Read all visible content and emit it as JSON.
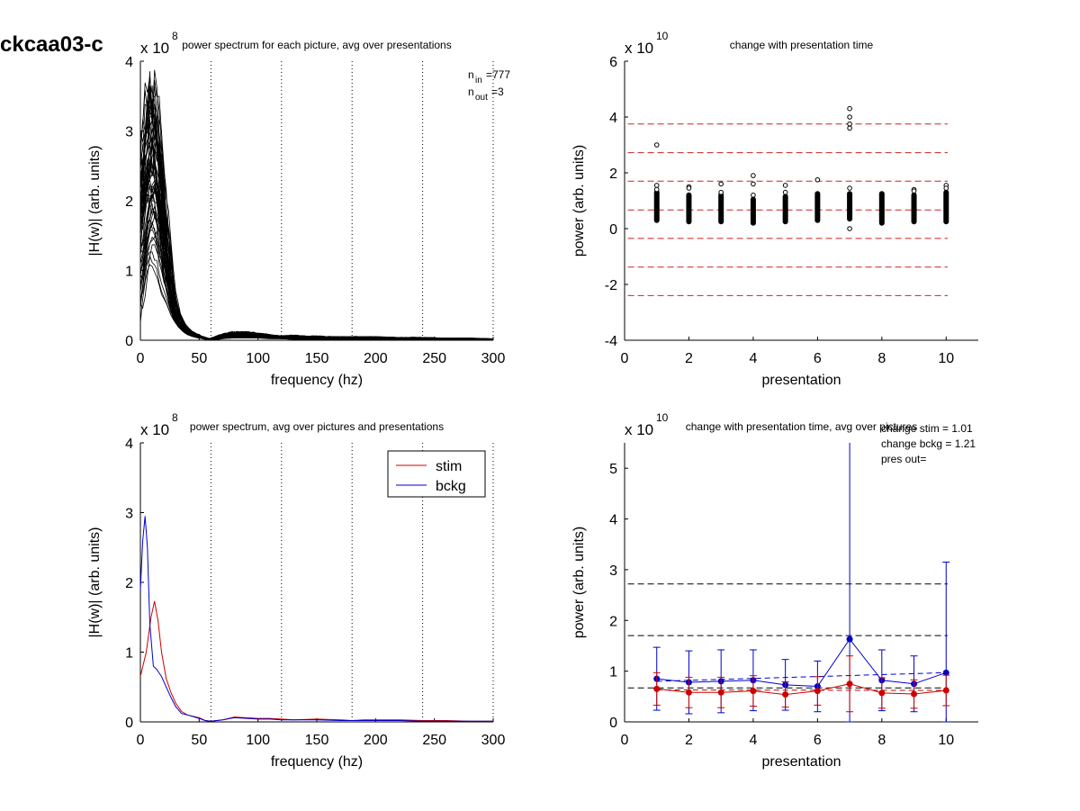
{
  "figure_title": "ckcaa03-c",
  "colors": {
    "stim": "#cc0000",
    "bckg": "#0000cc",
    "black": "#000000",
    "red_dash": "#cc2222"
  },
  "chart_data": [
    {
      "id": "p1",
      "type": "line",
      "title": "power spectrum for each picture, avg over presentations",
      "xlabel": "frequency (hz)",
      "ylabel": "|H(w)| (arb. units)",
      "multiplier": {
        "base": "x 10",
        "exp": "8"
      },
      "xlim": [
        0,
        300
      ],
      "ylim": [
        0,
        4
      ],
      "xticks": [
        0,
        50,
        100,
        150,
        200,
        250,
        300
      ],
      "yticks": [
        0,
        1,
        2,
        3,
        4
      ],
      "vlines": [
        60,
        120,
        180,
        240,
        300
      ],
      "annotations": [
        {
          "base": "n",
          "sub": "in",
          "value": "=777"
        },
        {
          "base": "n",
          "sub": "out",
          "value": "=3"
        }
      ],
      "trace_count": 60,
      "envelope": {
        "x": [
          0,
          3,
          6,
          9,
          12,
          15,
          18,
          22,
          26,
          30,
          35,
          40,
          45,
          50,
          55,
          60,
          65,
          70,
          80,
          90,
          100,
          110,
          120,
          130,
          140,
          150,
          160,
          170,
          180,
          190,
          200,
          220,
          240,
          260,
          280,
          300
        ],
        "lower": [
          0.1,
          0.6,
          0.9,
          1.0,
          0.9,
          0.8,
          0.6,
          0.5,
          0.35,
          0.25,
          0.15,
          0.08,
          0.05,
          0.03,
          0.02,
          0.0,
          0.01,
          0.02,
          0.03,
          0.03,
          0.03,
          0.02,
          0.02,
          0.01,
          0.01,
          0.01,
          0.01,
          0.01,
          0.01,
          0.01,
          0.01,
          0.01,
          0.01,
          0.01,
          0.01,
          0.01
        ],
        "upper": [
          2.8,
          3.0,
          3.4,
          3.75,
          3.6,
          3.3,
          2.6,
          1.7,
          0.9,
          0.45,
          0.25,
          0.15,
          0.1,
          0.06,
          0.03,
          0.01,
          0.05,
          0.08,
          0.12,
          0.12,
          0.1,
          0.08,
          0.06,
          0.07,
          0.06,
          0.06,
          0.05,
          0.05,
          0.05,
          0.05,
          0.05,
          0.04,
          0.04,
          0.03,
          0.03,
          0.02
        ]
      }
    },
    {
      "id": "p2",
      "type": "scatter",
      "title": "change with presentation time",
      "xlabel": "presentation",
      "ylabel": "power (arb. units)",
      "multiplier": {
        "base": "x 10",
        "exp": "10"
      },
      "xlim": [
        0,
        11
      ],
      "ylim": [
        -4,
        6
      ],
      "xticks": [
        0,
        2,
        4,
        6,
        8,
        10
      ],
      "yticks": [
        -4,
        -2,
        0,
        2,
        4,
        6
      ],
      "hlines": [
        3.75,
        2.72,
        1.7,
        0.67,
        -0.35,
        -1.38,
        -2.4
      ],
      "columns": [
        {
          "x": 1,
          "min": 0.3,
          "max": 1.3,
          "outliers": [
            3.0,
            1.55,
            1.4
          ]
        },
        {
          "x": 2,
          "min": 0.25,
          "max": 1.2,
          "outliers": [
            1.5,
            1.45
          ]
        },
        {
          "x": 3,
          "min": 0.25,
          "max": 1.2,
          "outliers": [
            1.6,
            1.3
          ]
        },
        {
          "x": 4,
          "min": 0.2,
          "max": 1.05,
          "outliers": [
            1.9,
            1.6,
            1.2
          ]
        },
        {
          "x": 5,
          "min": 0.25,
          "max": 1.15,
          "outliers": [
            1.55,
            1.3
          ]
        },
        {
          "x": 6,
          "min": 0.3,
          "max": 1.25,
          "outliers": [
            1.75
          ]
        },
        {
          "x": 7,
          "min": 0.35,
          "max": 1.25,
          "outliers": [
            4.3,
            4.0,
            3.75,
            3.6,
            1.45,
            0.0
          ]
        },
        {
          "x": 8,
          "min": 0.2,
          "max": 1.25,
          "outliers": []
        },
        {
          "x": 9,
          "min": 0.25,
          "max": 1.2,
          "outliers": [
            1.4,
            1.35
          ]
        },
        {
          "x": 10,
          "min": 0.25,
          "max": 1.3,
          "outliers": [
            1.55,
            1.45
          ]
        }
      ]
    },
    {
      "id": "p3",
      "type": "line",
      "title": "power spectrum, avg over pictures and presentations",
      "xlabel": "frequency (hz)",
      "ylabel": "|H(w)| (arb. units)",
      "multiplier": {
        "base": "x 10",
        "exp": "8"
      },
      "xlim": [
        0,
        300
      ],
      "ylim": [
        0,
        4
      ],
      "xticks": [
        0,
        50,
        100,
        150,
        200,
        250,
        300
      ],
      "yticks": [
        0,
        1,
        2,
        3,
        4
      ],
      "vlines": [
        60,
        120,
        180,
        240,
        300
      ],
      "legend": {
        "placement": "top-right"
      },
      "series": [
        {
          "name": "stim",
          "x": [
            0,
            5,
            9,
            12,
            15,
            18,
            22,
            26,
            30,
            35,
            40,
            50,
            55,
            60,
            70,
            80,
            90,
            100,
            110,
            120,
            130,
            150,
            170,
            180,
            190,
            200,
            220,
            240,
            260,
            280,
            300
          ],
          "y": [
            0.65,
            1.0,
            1.5,
            1.73,
            1.45,
            1.0,
            0.62,
            0.42,
            0.27,
            0.15,
            0.1,
            0.06,
            0.02,
            0.01,
            0.03,
            0.07,
            0.06,
            0.05,
            0.05,
            0.04,
            0.03,
            0.04,
            0.03,
            0.02,
            0.03,
            0.03,
            0.03,
            0.02,
            0.02,
            0.01,
            0.01
          ]
        },
        {
          "name": "bckg",
          "x": [
            0,
            2,
            4,
            6,
            8,
            11,
            14,
            18,
            22,
            26,
            30,
            35,
            40,
            50,
            55,
            60,
            70,
            80,
            90,
            100,
            110,
            120,
            130,
            150,
            170,
            180,
            190,
            200,
            220,
            240,
            260,
            280,
            300
          ],
          "y": [
            1.9,
            2.6,
            2.95,
            2.5,
            1.4,
            0.8,
            0.75,
            0.65,
            0.5,
            0.35,
            0.22,
            0.12,
            0.1,
            0.05,
            0.02,
            0.01,
            0.03,
            0.06,
            0.05,
            0.04,
            0.04,
            0.03,
            0.03,
            0.03,
            0.02,
            0.02,
            0.02,
            0.02,
            0.02,
            0.01,
            0.01,
            0.01,
            0.01
          ]
        }
      ]
    },
    {
      "id": "p4",
      "type": "line",
      "title": "change with presentation time, avg over pictures",
      "xlabel": "presentation",
      "ylabel": "power (arb. units)",
      "multiplier": {
        "base": "x 10",
        "exp": "10"
      },
      "xlim": [
        0,
        11
      ],
      "ylim": [
        0,
        5.5
      ],
      "xticks": [
        0,
        2,
        4,
        6,
        8,
        10
      ],
      "yticks": [
        0,
        1,
        2,
        3,
        4,
        5
      ],
      "annotations": [
        "change stim = 1.01",
        "change bckg = 1.21",
        "pres out="
      ],
      "hlines": [
        2.72,
        1.7,
        0.67
      ],
      "series": [
        {
          "name": "stim",
          "x": [
            1,
            2,
            3,
            4,
            5,
            6,
            7,
            8,
            9,
            10
          ],
          "y": [
            0.65,
            0.58,
            0.58,
            0.61,
            0.54,
            0.61,
            0.75,
            0.57,
            0.55,
            0.62
          ],
          "err": [
            0.32,
            0.3,
            0.3,
            0.3,
            0.25,
            0.28,
            0.55,
            0.3,
            0.28,
            0.3
          ],
          "trend": [
            0.63,
            0.62
          ]
        },
        {
          "name": "bckg",
          "x": [
            1,
            2,
            3,
            4,
            5,
            6,
            7,
            8,
            9,
            10
          ],
          "y": [
            0.85,
            0.78,
            0.8,
            0.82,
            0.73,
            0.7,
            1.63,
            0.82,
            0.75,
            0.97
          ],
          "err": [
            0.62,
            0.62,
            0.62,
            0.6,
            0.5,
            0.5,
            4.0,
            0.6,
            0.55,
            2.18
          ],
          "trend": [
            0.8,
            0.97
          ]
        }
      ]
    }
  ]
}
